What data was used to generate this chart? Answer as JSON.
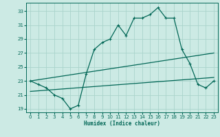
{
  "xlabel": "Humidex (Indice chaleur)",
  "ylabel": "",
  "bg_color": "#cceae4",
  "grid_color": "#aad4cc",
  "line_color": "#006655",
  "xlim": [
    -0.5,
    23.5
  ],
  "ylim": [
    18.5,
    34.2
  ],
  "yticks": [
    19,
    21,
    23,
    25,
    27,
    29,
    31,
    33
  ],
  "xticks": [
    0,
    1,
    2,
    3,
    4,
    5,
    6,
    7,
    8,
    9,
    10,
    11,
    12,
    13,
    14,
    15,
    16,
    17,
    18,
    19,
    20,
    21,
    22,
    23
  ],
  "hours": [
    0,
    1,
    2,
    3,
    4,
    5,
    6,
    7,
    8,
    9,
    10,
    11,
    12,
    13,
    14,
    15,
    16,
    17,
    18,
    19,
    20,
    21,
    22,
    23
  ],
  "humidex": [
    23,
    22.5,
    22,
    21,
    20.5,
    19,
    19.5,
    24,
    27.5,
    28.5,
    29,
    31,
    29.5,
    32,
    32,
    32.5,
    33.5,
    32,
    32,
    27.5,
    25.5,
    22.5,
    22,
    23
  ],
  "line1_x": [
    0,
    23
  ],
  "line1_y": [
    23,
    27
  ],
  "line2_x": [
    0,
    23
  ],
  "line2_y": [
    21.5,
    23.5
  ]
}
